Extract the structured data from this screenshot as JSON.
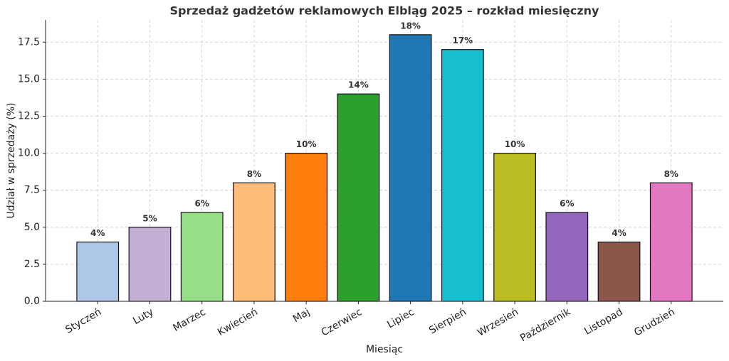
{
  "chart_data": {
    "type": "bar",
    "title": "Sprzedaż gadżetów reklamowych Elbląg 2025 – rozkład miesięczny",
    "x_label": "Miesiąc",
    "y_label": "Udział w sprzedaży (%)",
    "categories": [
      "Styczeń",
      "Luty",
      "Marzec",
      "Kwiecień",
      "Maj",
      "Czerwiec",
      "Lipiec",
      "Sierpień",
      "Wrzesień",
      "Październik",
      "Listopad",
      "Grudzień"
    ],
    "values": [
      4,
      5,
      6,
      8,
      10,
      14,
      18,
      17,
      10,
      6,
      4,
      8
    ],
    "value_labels": [
      "4%",
      "5%",
      "6%",
      "8%",
      "10%",
      "14%",
      "18%",
      "17%",
      "10%",
      "6%",
      "4%",
      "8%"
    ],
    "colors": [
      "#aec7e8",
      "#c5b0d5",
      "#98df8a",
      "#ffbb78",
      "#ff7f0e",
      "#2ca02c",
      "#1f77b4",
      "#17becf",
      "#bcbd22",
      "#9467bd",
      "#8c564b",
      "#e377c2"
    ],
    "ylim": [
      0,
      19
    ],
    "yticks": [
      {
        "value": 0,
        "label": "0.0"
      },
      2.5,
      {
        "value": 5,
        "label": "5.0"
      },
      7.5,
      {
        "value": 10,
        "label": "10.0"
      },
      12.5,
      {
        "value": 15,
        "label": "15.0"
      },
      17.5
    ],
    "grid": true
  }
}
